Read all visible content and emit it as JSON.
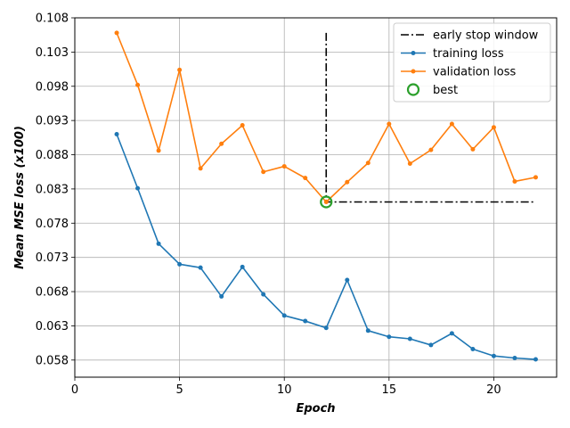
{
  "chart_data": {
    "type": "line",
    "title": "",
    "xlabel": "Epoch",
    "ylabel": "Mean MSE loss (x100)",
    "xlim": [
      0,
      23
    ],
    "ylim": [
      0.0555,
      0.108
    ],
    "xticks": [
      0,
      5,
      10,
      15,
      20
    ],
    "xtick_labels": [
      "0",
      "5",
      "10",
      "15",
      "20"
    ],
    "yticks": [
      0.058,
      0.063,
      0.068,
      0.073,
      0.078,
      0.083,
      0.088,
      0.093,
      0.098,
      0.103,
      0.108
    ],
    "ytick_labels": [
      "0.058",
      "0.063",
      "0.068",
      "0.073",
      "0.078",
      "0.083",
      "0.088",
      "0.093",
      "0.098",
      "0.103",
      "0.108"
    ],
    "grid": true,
    "legend_position": "top-right",
    "series": [
      {
        "name": "training loss",
        "color": "#1f77b4",
        "marker": "dot",
        "x": [
          2,
          3,
          4,
          5,
          6,
          7,
          8,
          9,
          10,
          11,
          12,
          13,
          14,
          15,
          16,
          17,
          18,
          19,
          20,
          21,
          22
        ],
        "y": [
          0.091,
          0.0831,
          0.075,
          0.072,
          0.0715,
          0.0673,
          0.0716,
          0.0676,
          0.0645,
          0.0637,
          0.0627,
          0.0697,
          0.0623,
          0.0614,
          0.0611,
          0.0602,
          0.0619,
          0.0596,
          0.0586,
          0.0583,
          0.0581
        ]
      },
      {
        "name": "validation loss",
        "color": "#ff7f0e",
        "marker": "dot",
        "x": [
          2,
          3,
          4,
          5,
          6,
          7,
          8,
          9,
          10,
          11,
          12,
          13,
          14,
          15,
          16,
          17,
          18,
          19,
          20,
          21,
          22
        ],
        "y": [
          0.1058,
          0.0982,
          0.0886,
          0.1004,
          0.086,
          0.0896,
          0.0923,
          0.0855,
          0.0863,
          0.0846,
          0.0811,
          0.084,
          0.0868,
          0.0925,
          0.0867,
          0.0887,
          0.0925,
          0.0888,
          0.092,
          0.0841,
          0.0847
        ]
      }
    ],
    "early_stop_window": {
      "name": "early stop window",
      "color": "#000000",
      "style": "dash-dot",
      "x": [
        12,
        12,
        22
      ],
      "y": [
        0.1058,
        0.0811,
        0.0811
      ]
    },
    "best": {
      "name": "best",
      "color": "#2ca02c",
      "marker": "hollow-circle",
      "x": 12,
      "y": 0.0811
    },
    "legend": [
      "early stop window",
      "training loss",
      "validation loss",
      "best"
    ]
  }
}
